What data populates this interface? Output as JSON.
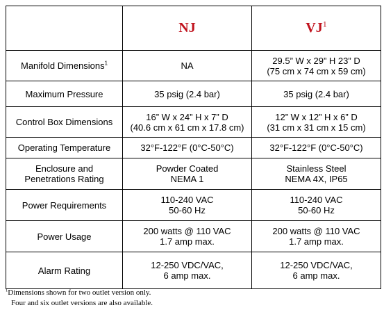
{
  "table": {
    "header": [
      {
        "text": "NJ"
      },
      {
        "text": "VJ",
        "sup": "1"
      }
    ],
    "rows": [
      {
        "label": [
          "Manifold Dimensions"
        ],
        "label_sup": "1",
        "cells": [
          [
            "NA"
          ],
          [
            "29.5” W x 29” H 23” D",
            "(75 cm x 74 cm x 59 cm)"
          ]
        ]
      },
      {
        "label": [
          "Maximum Pressure"
        ],
        "cells": [
          [
            "35 psig (2.4 bar)"
          ],
          [
            "35 psig (2.4 bar)"
          ]
        ]
      },
      {
        "label": [
          "Control Box Dimensions"
        ],
        "cells": [
          [
            "16” W x 24” H x 7” D",
            "(40.6 cm x 61 cm x 17.8 cm)"
          ],
          [
            "12” W x 12” H x 6” D",
            "(31 cm x 31 cm x 15 cm)"
          ]
        ]
      },
      {
        "label": [
          "Operating Temperature"
        ],
        "cells": [
          [
            "32°F-122°F (0°C-50°C)"
          ],
          [
            "32°F-122°F (0°C-50°C)"
          ]
        ]
      },
      {
        "label": [
          "Enclosure and",
          "Penetrations Rating"
        ],
        "cells": [
          [
            "Powder Coated",
            "NEMA 1"
          ],
          [
            "Stainless Steel",
            "NEMA 4X, IP65"
          ]
        ]
      },
      {
        "label": [
          "Power Requirements"
        ],
        "cells": [
          [
            "110-240 VAC",
            "50-60 Hz"
          ],
          [
            "110-240 VAC",
            "50-60 Hz"
          ]
        ]
      },
      {
        "label": [
          "Power Usage"
        ],
        "cells": [
          [
            "200 watts @ 110 VAC",
            "1.7 amp max."
          ],
          [
            "200 watts @ 110 VAC",
            "1.7 amp max."
          ]
        ]
      },
      {
        "label": [
          "Alarm Rating"
        ],
        "cells": [
          [
            "12-250 VDC/VAC,",
            "6 amp max."
          ],
          [
            "12-250 VDC/VAC,",
            "6 amp max."
          ]
        ]
      }
    ]
  },
  "footnote": {
    "sup": "1",
    "lines": [
      "Dimensions shown for two outlet version only.",
      "Four and six outlet versions are also available."
    ]
  }
}
